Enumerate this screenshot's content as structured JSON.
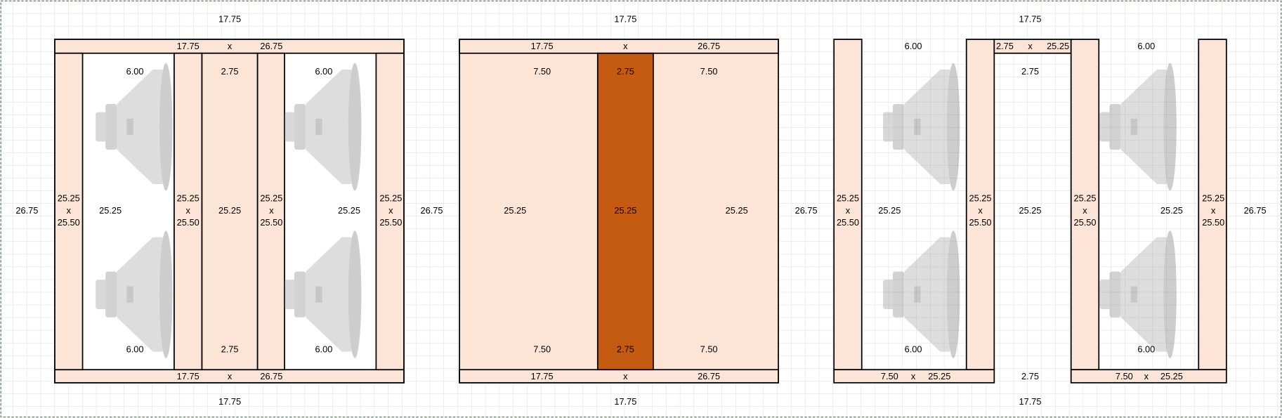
{
  "diagrams": [
    {
      "labels": [
        "17.75",
        "17.75",
        "x",
        "26.75",
        "26.75",
        "25.25",
        "x",
        "25.50",
        "6.00",
        "25.25",
        "6.00",
        "25.25",
        "x",
        "25.50",
        "2.75",
        "25.25",
        "2.75",
        "25.25",
        "x",
        "25.50",
        "6.00",
        "25.25",
        "6.00",
        "25.25",
        "x",
        "25.50",
        "17.75",
        "x",
        "26.75",
        "17.75",
        "26.75"
      ]
    },
    {
      "labels": [
        "17.75",
        "17.75",
        "x",
        "26.75",
        "7.50",
        "2.75",
        "7.50",
        "25.25",
        "25.25",
        "25.25",
        "7.50",
        "2.75",
        "7.50",
        "17.75",
        "x",
        "26.75",
        "17.75",
        "26.75"
      ]
    },
    {
      "labels": [
        "17.75",
        "6.00",
        "2.75",
        "x",
        "25.25",
        "6.00",
        "2.75",
        "25.25",
        "x",
        "25.50",
        "25.25",
        "25.25",
        "x",
        "25.50",
        "25.25",
        "25.25",
        "x",
        "25.50",
        "25.25",
        "25.25",
        "x",
        "25.50",
        "26.75",
        "6.00",
        "6.00",
        "7.50",
        "x",
        "25.25",
        "2.75",
        "7.50",
        "x",
        "25.25",
        "17.75"
      ]
    }
  ]
}
